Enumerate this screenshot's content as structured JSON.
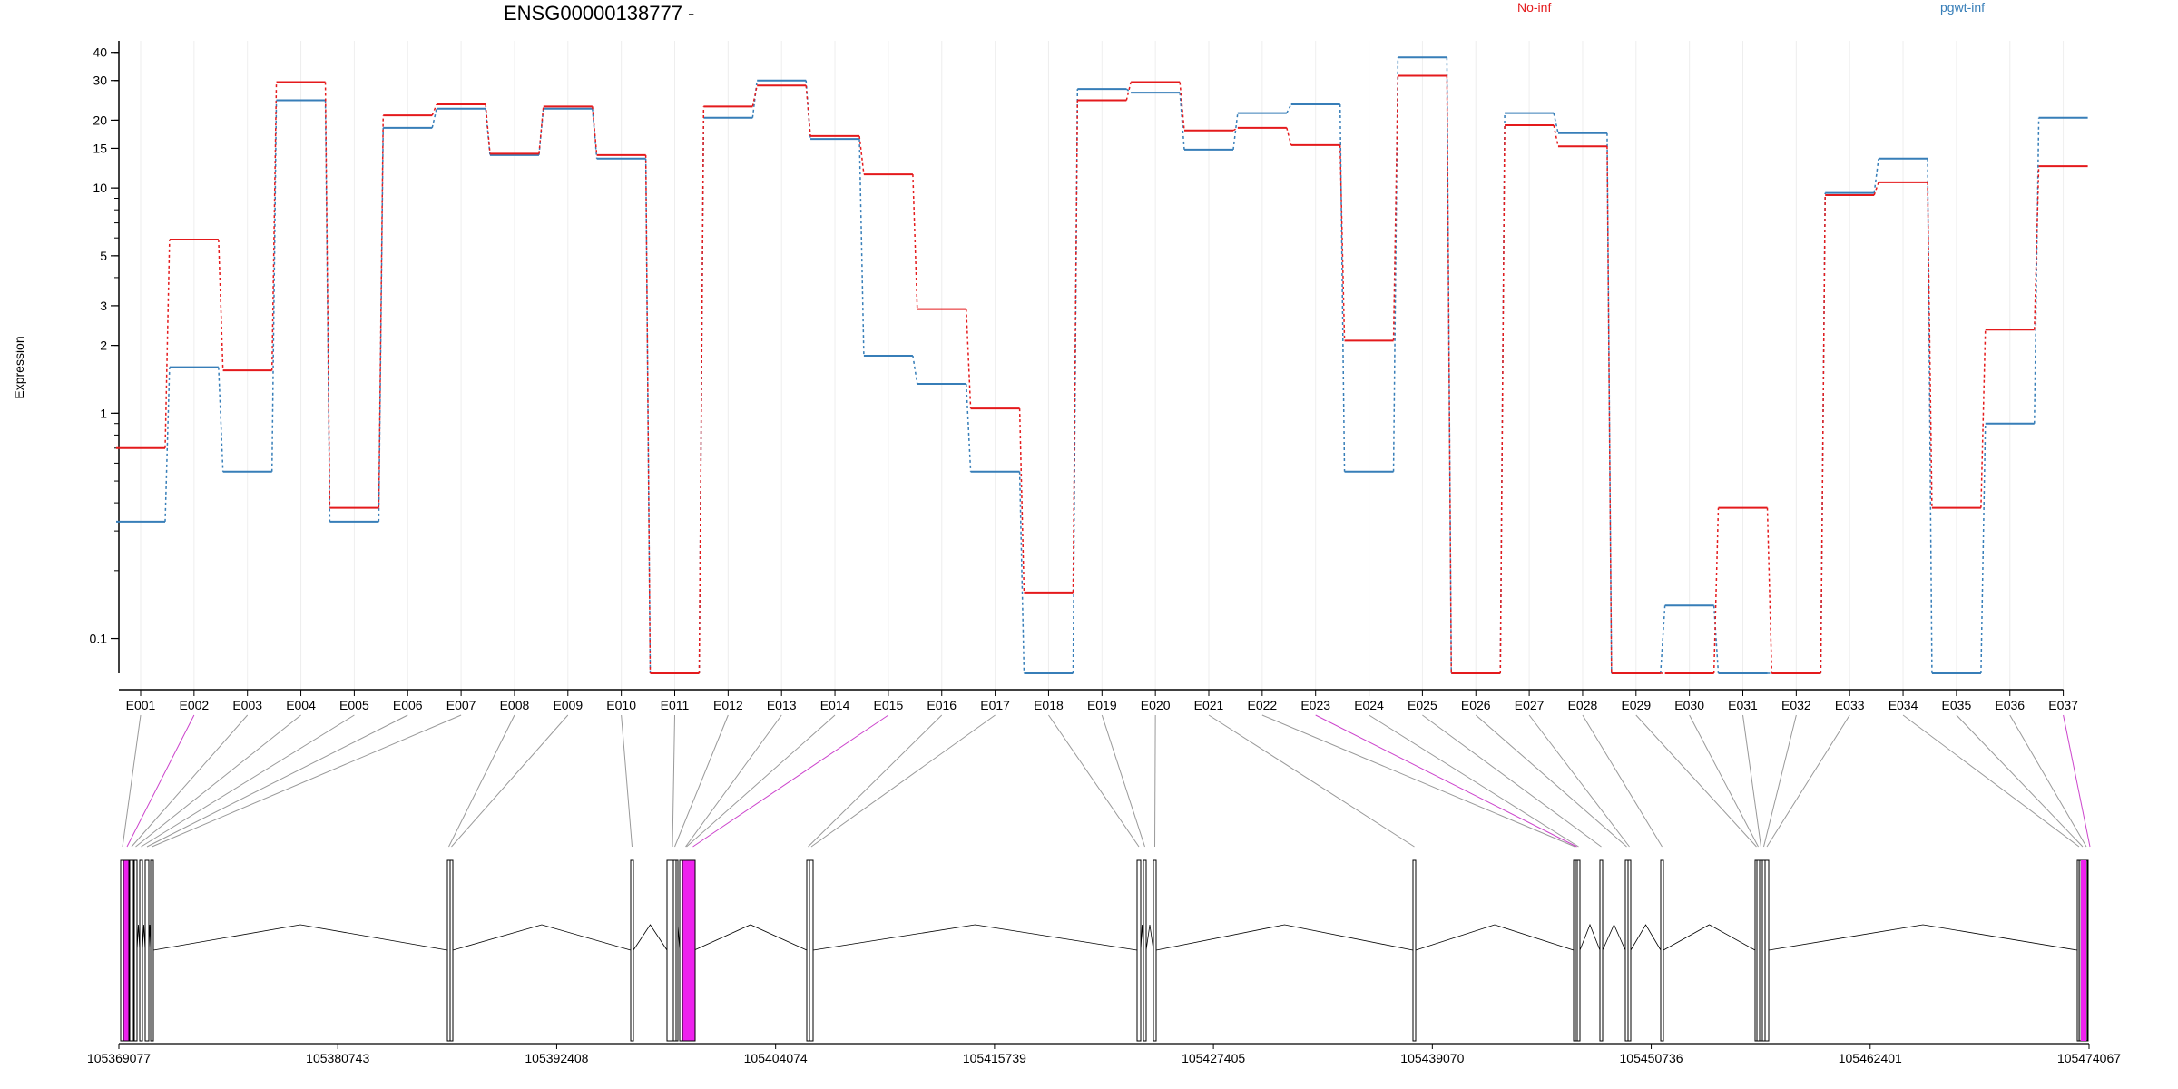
{
  "chart_data": {
    "type": "line",
    "title": "ENSG00000138777 -",
    "ylabel": "Expression",
    "xlabel": "",
    "y_scale": "log",
    "ylim": [
      0.07,
      45
    ],
    "y_ticks": [
      0.1,
      1,
      2,
      3,
      5,
      10,
      15,
      20,
      30,
      40
    ],
    "y_tick_labels": [
      "0.1",
      "1",
      "2",
      "3",
      "5",
      "10",
      "15",
      "20",
      "30",
      "40"
    ],
    "grid": "vertical, light",
    "legend_placement": "top",
    "colors": {
      "No-inf": "#e41a1c",
      "pgwt-inf": "#377eb8",
      "highlight": "#ee22ee",
      "connector": "#999999",
      "connector_highlight": "#cc44cc"
    },
    "categories": [
      "E001",
      "E002",
      "E003",
      "E004",
      "E005",
      "E006",
      "E007",
      "E008",
      "E009",
      "E010",
      "E011",
      "E012",
      "E013",
      "E014",
      "E015",
      "E016",
      "E017",
      "E018",
      "E019",
      "E020",
      "E021",
      "E022",
      "E023",
      "E024",
      "E025",
      "E026",
      "E027",
      "E028",
      "E029",
      "E030",
      "E031",
      "E032",
      "E033",
      "E034",
      "E035",
      "E036",
      "E037"
    ],
    "series": [
      {
        "name": "No-inf",
        "values": [
          0.7,
          5.9,
          1.55,
          29.5,
          0.38,
          21,
          23.5,
          14.2,
          23,
          14,
          0.07,
          23,
          28.5,
          17,
          11.5,
          2.9,
          1.05,
          0.16,
          24.5,
          29.5,
          18,
          18.5,
          15.5,
          2.1,
          31.5,
          0.07,
          19,
          15.3,
          0.07,
          0.07,
          0.38,
          0.07,
          9.3,
          10.6,
          0.38,
          2.35,
          12.5
        ]
      },
      {
        "name": "pgwt-inf",
        "values": [
          0.33,
          1.6,
          0.55,
          24.5,
          0.33,
          18.5,
          22.5,
          14,
          22.5,
          13.5,
          0.07,
          20.5,
          30,
          16.5,
          1.8,
          1.35,
          0.55,
          0.07,
          27.5,
          26.5,
          14.8,
          21.5,
          23.5,
          0.55,
          38,
          0.07,
          21.5,
          17.5,
          0.07,
          0.14,
          0.07,
          0.07,
          9.5,
          13.5,
          0.07,
          0.9,
          20.5
        ]
      }
    ],
    "genomic_axis": {
      "ticks": [
        "105369077",
        "105380743",
        "105392408",
        "105404074",
        "105415739",
        "105427405",
        "105439070",
        "105450736",
        "105462401",
        "105474067"
      ]
    },
    "exon_model": {
      "highlighted_exons": [
        "E002",
        "E015",
        "E023",
        "E037"
      ]
    }
  }
}
